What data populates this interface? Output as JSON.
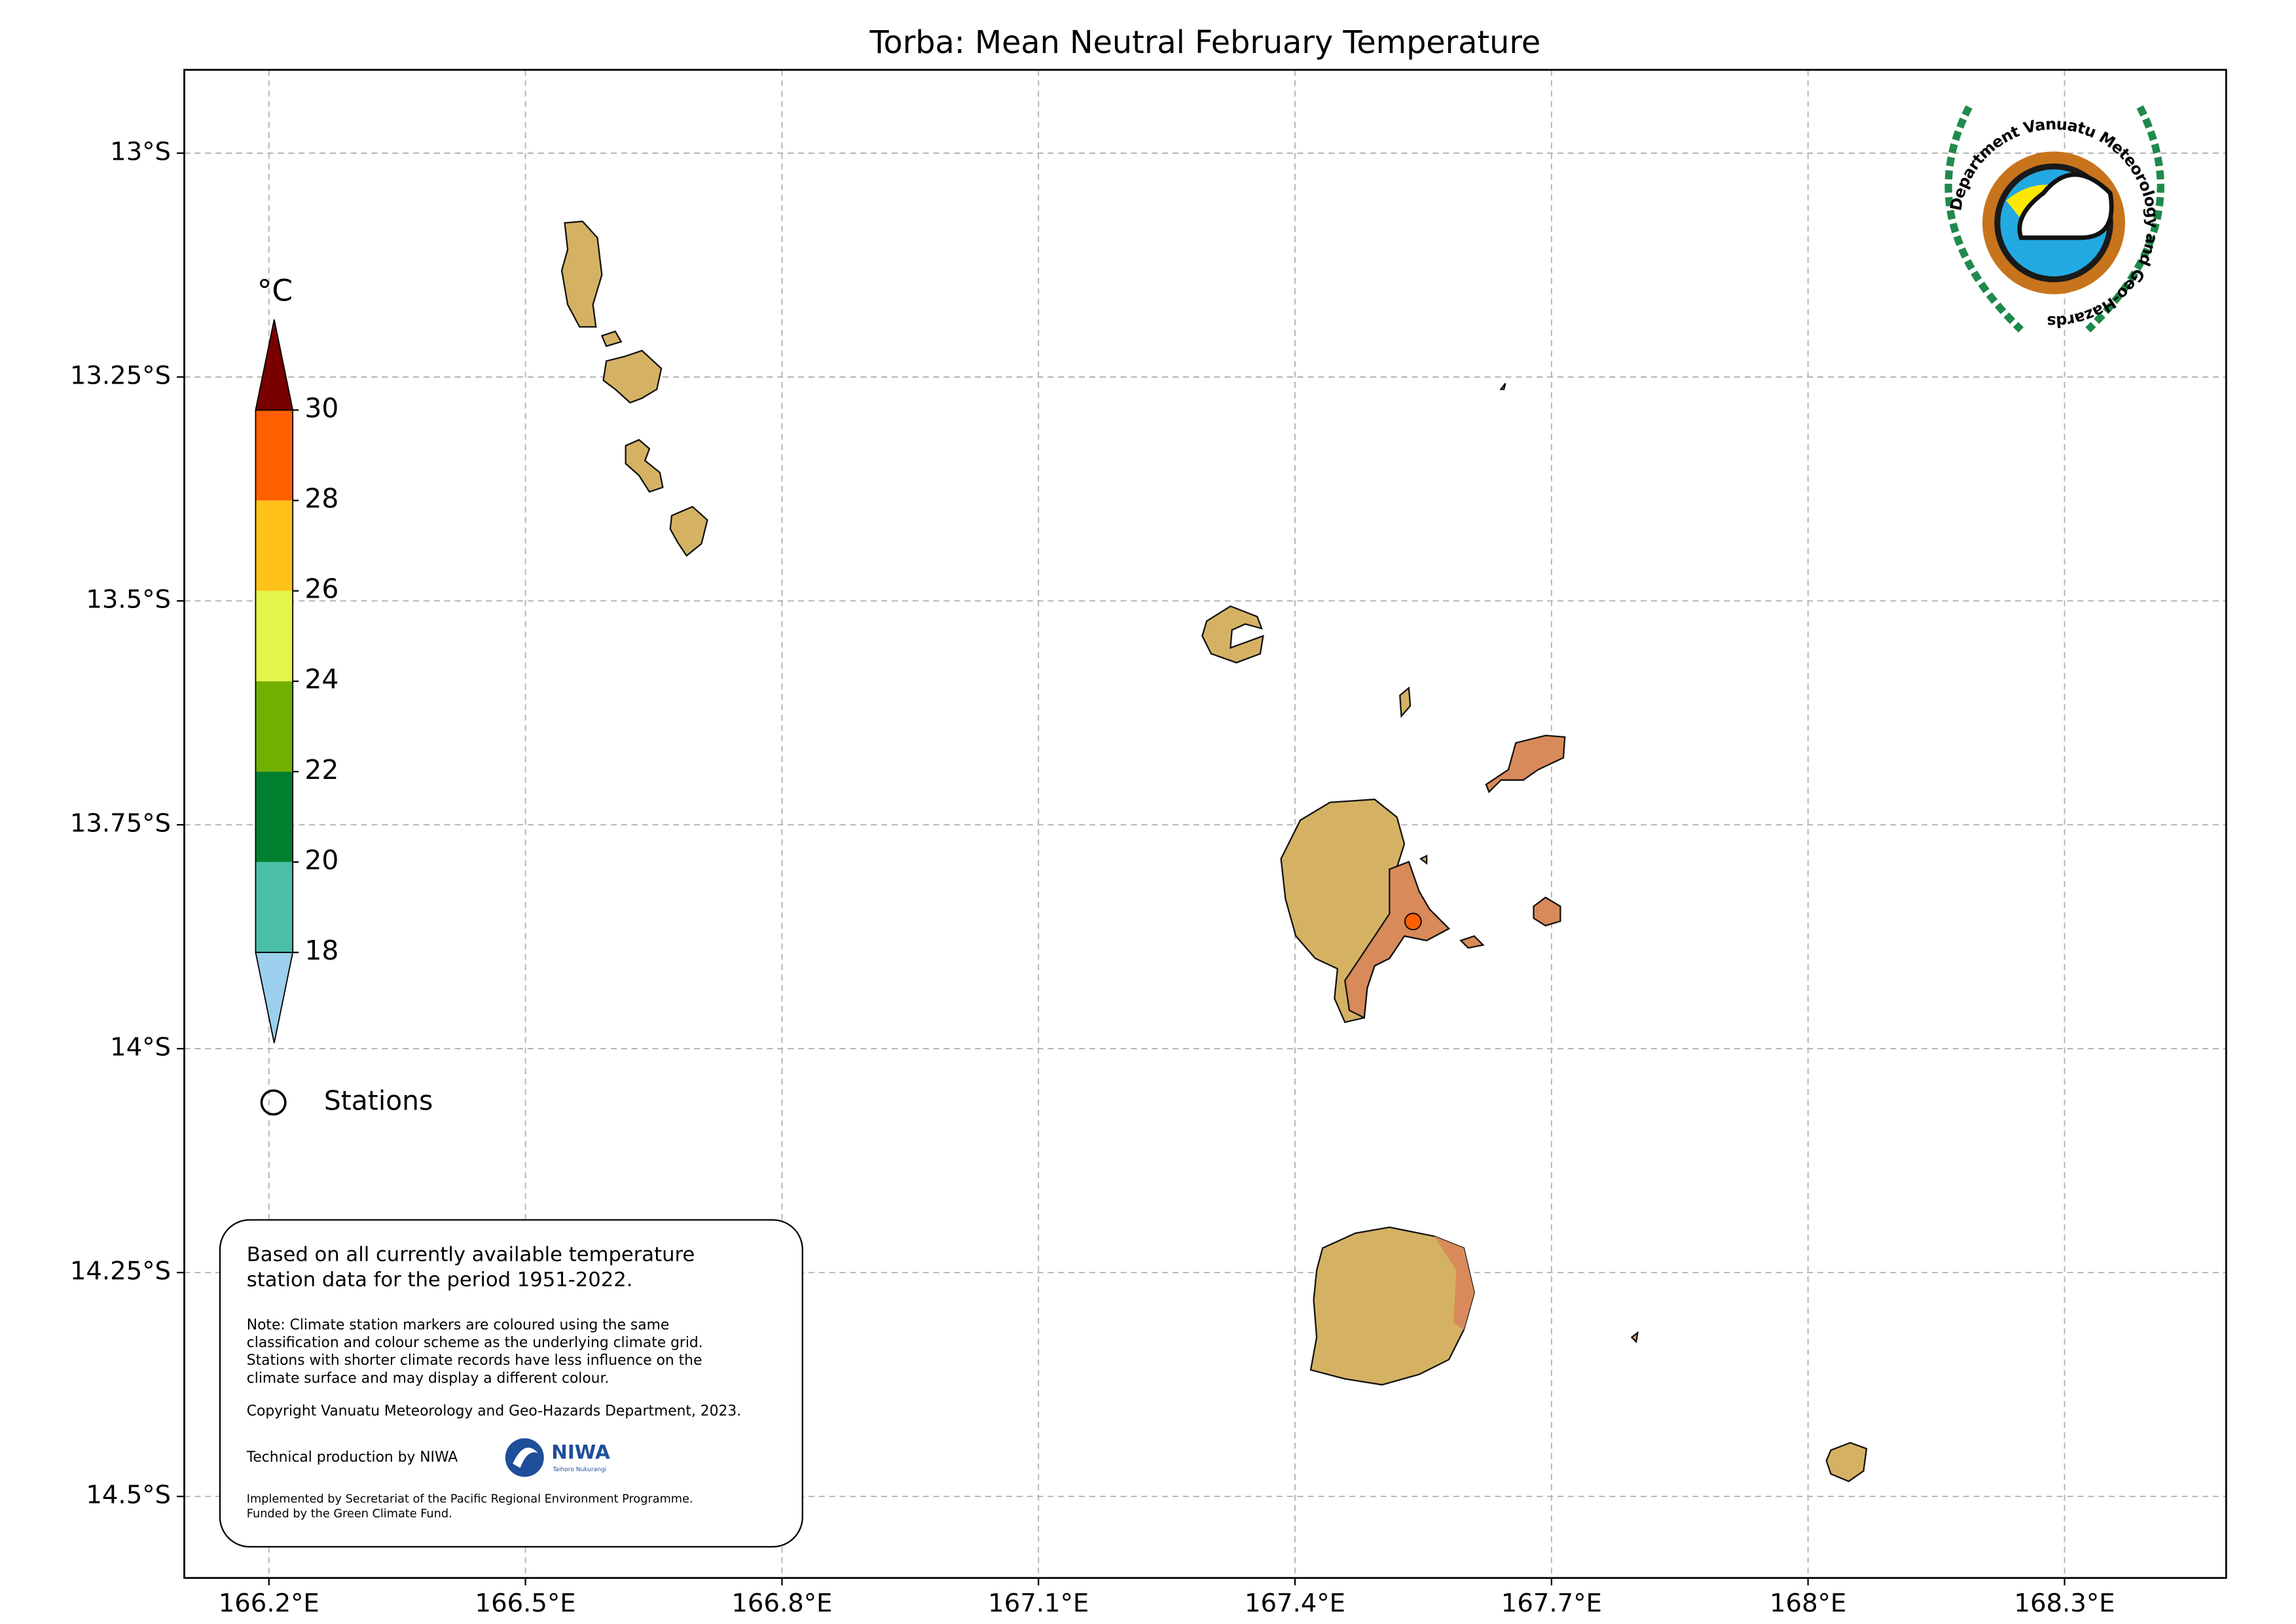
{
  "chart_data": {
    "type": "map",
    "title": "Torba: Mean Neutral February Temperature",
    "xlim": [
      166.101,
      168.489
    ],
    "ylim": [
      -14.591,
      -12.907
    ],
    "xticks": [
      {
        "value": 166.2,
        "label": "166.2°E"
      },
      {
        "value": 166.5,
        "label": "166.5°E"
      },
      {
        "value": 166.8,
        "label": "166.8°E"
      },
      {
        "value": 167.1,
        "label": "167.1°E"
      },
      {
        "value": 167.4,
        "label": "167.4°E"
      },
      {
        "value": 167.7,
        "label": "167.7°E"
      },
      {
        "value": 168.0,
        "label": "168°E"
      },
      {
        "value": 168.3,
        "label": "168.3°E"
      }
    ],
    "yticks": [
      {
        "value": -13.0,
        "label": "13°S"
      },
      {
        "value": -13.25,
        "label": "13.25°S"
      },
      {
        "value": -13.5,
        "label": "13.5°S"
      },
      {
        "value": -13.75,
        "label": "13.75°S"
      },
      {
        "value": -14.0,
        "label": "14°S"
      },
      {
        "value": -14.25,
        "label": "14.25°S"
      },
      {
        "value": -14.5,
        "label": "14.5°S"
      }
    ],
    "grid": true,
    "colorbar": {
      "unit": "°C",
      "ticks": [
        30,
        28,
        26,
        24,
        22,
        20,
        18
      ],
      "colors": [
        "#7a0000",
        "#ff5f00",
        "#ffc21a",
        "#e3f54a",
        "#72b000",
        "#007f2e",
        "#4bbfa8",
        "#9ccfee"
      ]
    },
    "legend": {
      "label": "Stations"
    },
    "stations": [
      {
        "lon": 167.538,
        "lat": -13.858,
        "color": "#ff5f00"
      }
    ],
    "info_box": {
      "summary": [
        "Based on all currently available temperature",
        "station data for the period 1951-2022."
      ],
      "note": [
        "Note: Climate station markers are coloured using the same",
        "classification and colour scheme as the underlying climate grid.",
        "Stations with shorter climate records have less influence on the",
        "climate surface and may display a different colour."
      ],
      "copyright": "Copyright Vanuatu Meteorology and Geo-Hazards Department, 2023.",
      "production": "Technical production by NIWA",
      "niwa": "NIWA",
      "niwa_sub": "Taihoro Nukurangi",
      "funding": [
        "Implemented by Secretariat of the Pacific Regional Environment Programme.",
        "Funded by the Green Climate Fund."
      ]
    },
    "logo_text": "Department Vanuatu Meteorology and Geo-Hazards"
  }
}
